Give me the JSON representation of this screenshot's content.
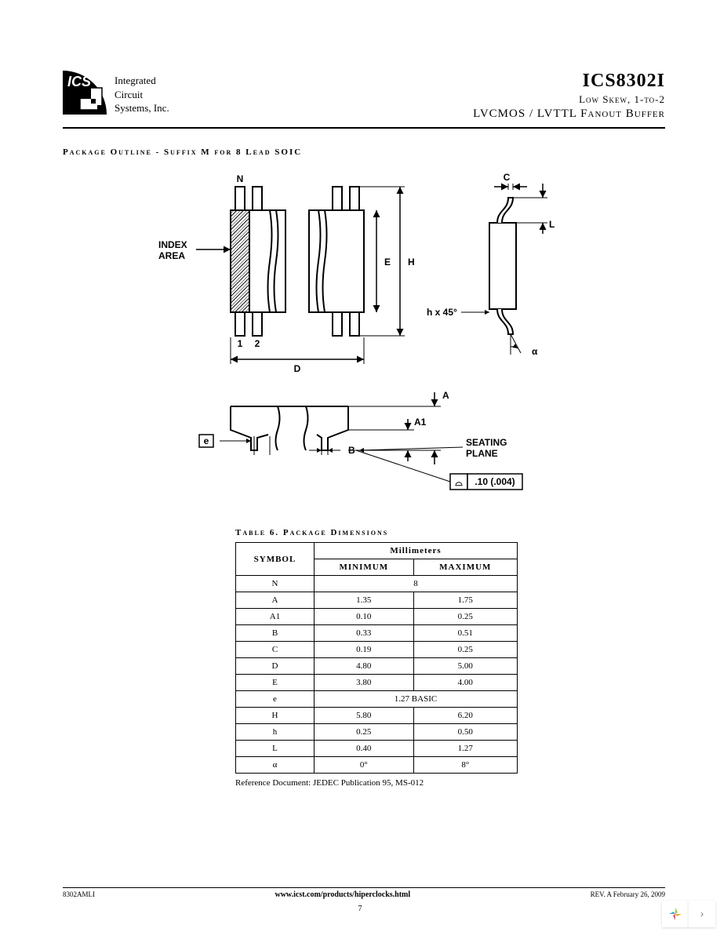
{
  "header": {
    "company_line1": "Integrated",
    "company_line2": "Circuit",
    "company_line3": "Systems, Inc.",
    "part_number": "ICS8302I",
    "subtitle1": "Low Skew, 1-to-2",
    "subtitle2": "LVCMOS / LVTTL Fanout Buffer"
  },
  "section": {
    "title": "Package Outline - Suffix M for 8 Lead SOIC"
  },
  "diagram": {
    "labels": {
      "index_area": "INDEX\nAREA",
      "N": "N",
      "pin1": "1",
      "pin2": "2",
      "D": "D",
      "E": "E",
      "H": "H",
      "C": "C",
      "L": "L",
      "chamfer": "h x 45°",
      "alpha": "α",
      "e": "e",
      "B": "B",
      "A": "A",
      "A1": "A1",
      "seating": "SEATING\nPLANE",
      "flatness": ".10 (.004)",
      "flatness_sym": "⌓"
    },
    "stroke": "#000000",
    "hatch": "#000000"
  },
  "table": {
    "title": "Table 6. Package Dimensions",
    "header_symbol": "SYMBOL",
    "header_unit": "Millimeters",
    "header_min": "MINIMUM",
    "header_max": "MAXIMUM",
    "rows": [
      {
        "sym": "N",
        "min": "8",
        "max": "",
        "span": true
      },
      {
        "sym": "A",
        "min": "1.35",
        "max": "1.75"
      },
      {
        "sym": "A1",
        "min": "0.10",
        "max": "0.25"
      },
      {
        "sym": "B",
        "min": "0.33",
        "max": "0.51"
      },
      {
        "sym": "C",
        "min": "0.19",
        "max": "0.25"
      },
      {
        "sym": "D",
        "min": "4.80",
        "max": "5.00"
      },
      {
        "sym": "E",
        "min": "3.80",
        "max": "4.00"
      },
      {
        "sym": "e",
        "min": "1.27 BASIC",
        "max": "",
        "span": true
      },
      {
        "sym": "H",
        "min": "5.80",
        "max": "6.20"
      },
      {
        "sym": "h",
        "min": "0.25",
        "max": "0.50"
      },
      {
        "sym": "L",
        "min": "0.40",
        "max": "1.27"
      },
      {
        "sym": "α",
        "min": "0°",
        "max": "8°"
      }
    ],
    "reference": "Reference Document: JEDEC Publication 95, MS-012"
  },
  "footer": {
    "left": "8302AMLI",
    "url": "www.icst.com/products/hiperclocks.html",
    "right": "REV. A   February 26, 2009",
    "page": "7"
  }
}
